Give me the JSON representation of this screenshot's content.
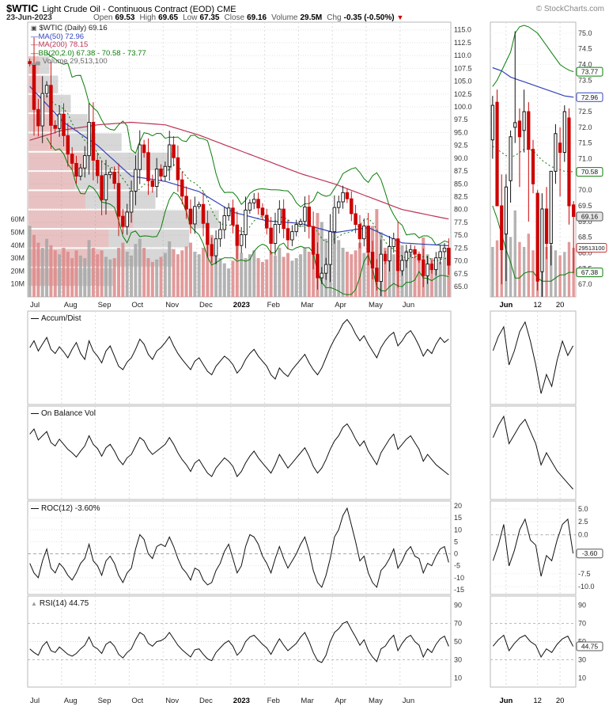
{
  "header": {
    "symbol": "$WTIC",
    "description": "Light Crude Oil - Continuous Contract (EOD) CME",
    "copyright": "© StockCharts.com",
    "date": "23-Jun-2023",
    "open_label": "Open",
    "open": "69.53",
    "high_label": "High",
    "high": "69.65",
    "low_label": "Low",
    "low": "67.35",
    "close_label": "Close",
    "close": "69.16",
    "volume_label": "Volume",
    "volume": "29.5M",
    "chg_label": "Chg",
    "chg": "-0.35 (-0.50%)",
    "chg_arrow": "▼"
  },
  "legend": {
    "symbol_line": "$WTIC (Daily) 69.16",
    "ma50": "MA(50) 72.96",
    "ma200": "MA(200) 78.15",
    "bb": "BB(20,2.0) 67.38 - 70.58 - 73.77",
    "volume": "Volume 29,513,100"
  },
  "panels": {
    "accum_title": "Accum/Dist",
    "obv_title": "On Balance Vol",
    "roc_title": "ROC(12) -3.60%",
    "rsi_title": "RSI(14) 44.75"
  },
  "colors": {
    "up": "#111111",
    "down": "#cc0000",
    "ma50": "#3344bb",
    "ma200": "#bb3355",
    "bb": "#0a7d0a",
    "volume_up": "#a6a6a6",
    "volume_down": "#dd8888",
    "vbp_gray": "#9a9a9a",
    "vbp_red": "#cc7777",
    "badge_green": "#0a7d0a",
    "badge_blue": "#3344bb",
    "badge_red": "#cc3333",
    "badge_dark": "#555555",
    "chg_down": "#cc0000",
    "indicator": "#111111",
    "volume_legend": "#666666"
  },
  "chart_data": {
    "type": "candlestick",
    "title": "$WTIC Light Crude Oil - Continuous Contract (EOD) CME",
    "x_labels": [
      "Jul",
      "Aug",
      "Sep",
      "Oct",
      "Nov",
      "Dec",
      "2023",
      "Feb",
      "Mar",
      "Apr",
      "May",
      "Jun"
    ],
    "month_start_idx": [
      0,
      8,
      16,
      24,
      32,
      40,
      48,
      56,
      64,
      72,
      80,
      88
    ],
    "ylim": [
      63.0,
      116.5
    ],
    "price_ticks": {
      "min": 65,
      "max": 115,
      "step": 2.5
    },
    "volume_ticks": [
      10,
      20,
      30,
      40,
      50,
      60
    ],
    "closes": [
      108.4,
      99.5,
      96.3,
      102.6,
      104.2,
      96.4,
      95.8,
      98.6,
      94.4,
      90.8,
      89.0,
      86.5,
      88.1,
      90.5,
      97.0,
      89.6,
      86.6,
      81.9,
      86.8,
      87.3,
      85.1,
      78.7,
      76.7,
      79.5,
      83.6,
      87.8,
      92.6,
      91.1,
      85.6,
      84.5,
      87.9,
      86.5,
      88.4,
      92.6,
      90.1,
      85.8,
      82.6,
      80.1,
      77.2,
      80.6,
      81.0,
      77.3,
      73.2,
      71.0,
      74.3,
      76.1,
      78.8,
      80.3,
      77.0,
      73.0,
      75.1,
      79.9,
      81.3,
      82.0,
      80.3,
      78.9,
      76.4,
      73.4,
      77.1,
      80.1,
      76.3,
      74.1,
      75.7,
      77.1,
      77.7,
      80.5,
      76.7,
      71.3,
      66.7,
      67.6,
      69.3,
      75.7,
      80.4,
      81.5,
      83.3,
      82.1,
      79.2,
      77.1,
      74.3,
      76.8,
      71.7,
      68.6,
      66.0,
      71.3,
      70.0,
      72.8,
      74.3,
      68.1,
      70.1,
      71.7,
      72.2,
      71.3,
      70.2,
      67.1,
      69.4,
      68.3,
      70.6,
      71.8,
      72.5,
      69.16
    ],
    "volumes_m": [
      55,
      48,
      42,
      38,
      45,
      40,
      36,
      33,
      38,
      35,
      30,
      36,
      32,
      30,
      44,
      38,
      33,
      36,
      31,
      29,
      30,
      38,
      42,
      35,
      32,
      41,
      45,
      38,
      30,
      27,
      29,
      31,
      34,
      43,
      37,
      33,
      36,
      39,
      42,
      35,
      33,
      38,
      44,
      48,
      36,
      30,
      26,
      22,
      28,
      41,
      34,
      30,
      33,
      36,
      30,
      27,
      29,
      35,
      32,
      38,
      31,
      34,
      28,
      30,
      33,
      38,
      35,
      52,
      65,
      58,
      45,
      40,
      56,
      44,
      38,
      35,
      33,
      36,
      42,
      34,
      48,
      55,
      68,
      50,
      38,
      35,
      33,
      44,
      40,
      36,
      34,
      31,
      29,
      46,
      33,
      30,
      28,
      27,
      31,
      29.5
    ],
    "ma50": {
      "idx": [
        0,
        8,
        16,
        24,
        32,
        40,
        48,
        56,
        64,
        72,
        80,
        88,
        99
      ],
      "values": [
        104,
        97,
        92.5,
        86.5,
        85.5,
        83.5,
        79.5,
        77.8,
        77.3,
        75.5,
        76.5,
        73.5,
        72.96
      ]
    },
    "ma200": {
      "idx": [
        0,
        8,
        16,
        24,
        32,
        40,
        48,
        56,
        64,
        72,
        80,
        88,
        99
      ],
      "values": [
        93.5,
        95.5,
        96.5,
        97,
        96.5,
        94.5,
        92,
        89.5,
        87,
        85,
        82.5,
        80,
        78.15
      ]
    },
    "bb_window": 10,
    "bb_mult": 2,
    "volume_by_price": [
      {
        "lo": 65.0,
        "hi": 68.75,
        "total": 0.2,
        "down_frac": 0.55
      },
      {
        "lo": 68.75,
        "hi": 72.5,
        "total": 0.34,
        "down_frac": 0.5
      },
      {
        "lo": 72.5,
        "hi": 76.25,
        "total": 0.38,
        "down_frac": 0.5
      },
      {
        "lo": 76.25,
        "hi": 80.0,
        "total": 0.45,
        "down_frac": 0.55
      },
      {
        "lo": 80.0,
        "hi": 83.75,
        "total": 0.3,
        "down_frac": 0.45
      },
      {
        "lo": 83.75,
        "hi": 87.5,
        "total": 0.26,
        "down_frac": 0.42
      },
      {
        "lo": 87.5,
        "hi": 91.25,
        "total": 0.34,
        "down_frac": 0.38
      },
      {
        "lo": 91.25,
        "hi": 95.0,
        "total": 0.22,
        "down_frac": 0.42
      },
      {
        "lo": 95.0,
        "hi": 98.75,
        "total": 0.14,
        "down_frac": 0.45
      },
      {
        "lo": 98.75,
        "hi": 102.5,
        "total": 0.1,
        "down_frac": 0.5
      },
      {
        "lo": 102.5,
        "hi": 106.25,
        "total": 0.07,
        "down_frac": 0.5
      },
      {
        "lo": 106.25,
        "hi": 110.0,
        "total": 0.05,
        "down_frac": 0.5
      }
    ],
    "indicators": {
      "accum_dist": {
        "ylim": [
          -5,
          105
        ],
        "values": [
          62,
          70,
          58,
          66,
          74,
          60,
          55,
          63,
          57,
          50,
          60,
          68,
          55,
          48,
          70,
          58,
          52,
          44,
          58,
          64,
          52,
          40,
          36,
          45,
          50,
          60,
          72,
          66,
          54,
          48,
          58,
          62,
          68,
          75,
          64,
          55,
          48,
          42,
          36,
          46,
          50,
          42,
          34,
          30,
          40,
          46,
          52,
          48,
          42,
          32,
          38,
          48,
          55,
          60,
          52,
          46,
          40,
          30,
          25,
          38,
          32,
          28,
          36,
          42,
          48,
          54,
          44,
          36,
          30,
          38,
          50,
          62,
          72,
          80,
          90,
          95,
          88,
          78,
          70,
          76,
          66,
          58,
          50,
          62,
          70,
          76,
          80,
          64,
          70,
          78,
          82,
          74,
          64,
          52,
          60,
          55,
          66,
          74,
          68,
          72
        ]
      },
      "obv": {
        "ylim": [
          -5,
          105
        ],
        "values": [
          72,
          78,
          65,
          70,
          75,
          62,
          58,
          66,
          60,
          54,
          50,
          45,
          52,
          58,
          70,
          60,
          55,
          46,
          56,
          60,
          52,
          42,
          36,
          44,
          48,
          58,
          68,
          64,
          54,
          48,
          52,
          56,
          60,
          68,
          60,
          50,
          42,
          36,
          28,
          38,
          42,
          34,
          26,
          22,
          32,
          38,
          44,
          40,
          34,
          22,
          28,
          38,
          46,
          52,
          44,
          38,
          32,
          26,
          36,
          48,
          40,
          32,
          38,
          44,
          50,
          56,
          46,
          34,
          26,
          32,
          42,
          54,
          64,
          70,
          80,
          84,
          76,
          66,
          58,
          64,
          52,
          44,
          36,
          50,
          58,
          66,
          72,
          54,
          60,
          66,
          70,
          62,
          54,
          40,
          48,
          42,
          36,
          32,
          28,
          24
        ]
      },
      "roc12": {
        "ylim": [
          -17,
          22
        ],
        "ticks": [
          20,
          15,
          10,
          5,
          0,
          -5,
          -10,
          -15
        ],
        "last": "-3.60",
        "values": [
          -4,
          -8,
          -10,
          -3,
          2,
          -6,
          -8,
          -4,
          -6,
          -9,
          -11,
          -8,
          -4,
          -2,
          4,
          -3,
          -5,
          -9,
          -3,
          -1,
          -4,
          -9,
          -12,
          -8,
          -6,
          2,
          8,
          6,
          0,
          -2,
          3,
          4,
          3,
          7,
          3,
          -2,
          -6,
          -8,
          -11,
          -6,
          -7,
          -11,
          -13,
          -12,
          -7,
          -4,
          1,
          4,
          -2,
          -8,
          -5,
          3,
          8,
          7,
          4,
          -1,
          -4,
          -8,
          -2,
          3,
          -2,
          -6,
          -3,
          0,
          4,
          7,
          1,
          -7,
          -12,
          -14,
          -9,
          -2,
          7,
          10,
          16,
          19,
          12,
          5,
          -3,
          -1,
          -8,
          -12,
          -14,
          -7,
          -5,
          -2,
          2,
          -6,
          -3,
          1,
          3,
          -1,
          -2,
          -8,
          -4,
          -5,
          -1,
          2,
          3,
          -3.6
        ]
      },
      "rsi14": {
        "ylim": [
          0,
          100
        ],
        "ticks": [
          90,
          70,
          50,
          30,
          10
        ],
        "last": "44.75",
        "values": [
          42,
          38,
          35,
          45,
          50,
          40,
          38,
          44,
          40,
          36,
          34,
          37,
          42,
          46,
          55,
          45,
          42,
          37,
          47,
          50,
          45,
          36,
          32,
          38,
          42,
          52,
          60,
          57,
          48,
          45,
          50,
          51,
          54,
          60,
          53,
          46,
          41,
          37,
          33,
          41,
          42,
          36,
          31,
          29,
          38,
          43,
          48,
          51,
          45,
          35,
          40,
          50,
          55,
          57,
          52,
          47,
          43,
          36,
          45,
          53,
          46,
          40,
          44,
          48,
          55,
          60,
          50,
          38,
          29,
          27,
          35,
          50,
          60,
          64,
          70,
          72,
          63,
          55,
          46,
          52,
          40,
          33,
          28,
          42,
          45,
          52,
          57,
          40,
          48,
          54,
          57,
          50,
          46,
          33,
          42,
          38,
          47,
          53,
          56,
          44.75
        ]
      }
    },
    "zoom": {
      "x_labels": [
        "Jun",
        "12",
        "20"
      ],
      "grid_idx": [
        3,
        10,
        15
      ],
      "ylim": [
        66.6,
        75.35
      ],
      "price_ticks": {
        "min": 67.0,
        "max": 75.0,
        "step": 0.5
      },
      "candles": [
        [
          71.6,
          73.0,
          71.0,
          72.7
        ],
        [
          72.8,
          73.2,
          69.5,
          69.5
        ],
        [
          69.5,
          70.5,
          67.0,
          68.1
        ],
        [
          68.6,
          70.5,
          67.1,
          70.1
        ],
        [
          70.3,
          71.9,
          69.6,
          71.7
        ],
        [
          72.0,
          75.06,
          71.5,
          72.15
        ],
        [
          72.2,
          72.6,
          70.1,
          71.7
        ],
        [
          71.9,
          73.2,
          71.2,
          72.5
        ],
        [
          72.5,
          72.8,
          69.0,
          71.3
        ],
        [
          71.3,
          71.6,
          69.9,
          70.2
        ],
        [
          69.9,
          70.0,
          66.8,
          67.1
        ],
        [
          67.4,
          69.9,
          66.6,
          69.4
        ],
        [
          69.4,
          70.1,
          67.8,
          68.3
        ],
        [
          68.3,
          70.6,
          67.6,
          70.6
        ],
        [
          70.6,
          72.1,
          70.2,
          71.8
        ],
        [
          71.5,
          72.0,
          69.8,
          71.2
        ],
        [
          71.2,
          72.7,
          70.9,
          72.5
        ],
        [
          72.3,
          72.6,
          68.9,
          69.5
        ],
        [
          69.53,
          69.65,
          67.35,
          69.16
        ]
      ],
      "volumes_m": [
        30,
        34,
        38,
        40,
        36,
        52,
        33,
        30,
        38,
        28,
        46,
        35,
        30,
        31,
        28,
        25,
        27,
        33,
        29.5
      ],
      "ma50": [
        73.9,
        73.85,
        73.8,
        73.7,
        73.6,
        73.55,
        73.5,
        73.45,
        73.4,
        73.35,
        73.3,
        73.25,
        73.2,
        73.15,
        73.1,
        73.05,
        73.0,
        72.98,
        72.96
      ],
      "bb_upper": [
        73.3,
        73.5,
        73.8,
        74.1,
        74.4,
        75.0,
        75.2,
        75.25,
        75.2,
        75.1,
        75.0,
        74.8,
        74.6,
        74.4,
        74.2,
        74.0,
        73.9,
        73.82,
        73.77
      ],
      "bb_mid": [
        71.4,
        71.3,
        71.2,
        71.1,
        71.05,
        71.1,
        71.2,
        71.3,
        71.3,
        71.25,
        71.1,
        70.95,
        70.85,
        70.75,
        70.7,
        70.65,
        70.6,
        70.6,
        70.58
      ],
      "bb_lower": [
        69.5,
        69.1,
        68.6,
        68.1,
        67.7,
        67.2,
        67.2,
        67.35,
        67.4,
        67.4,
        67.2,
        67.1,
        67.1,
        67.1,
        67.2,
        67.3,
        67.3,
        67.38,
        67.38
      ],
      "badges": [
        {
          "text": "73.77",
          "price": 73.77,
          "color": "green"
        },
        {
          "text": "72.96",
          "price": 72.96,
          "color": "blue"
        },
        {
          "text": "70.58",
          "price": 70.58,
          "color": "green"
        },
        {
          "text": "69.16",
          "price": 69.16,
          "color": "close"
        },
        {
          "text": "29513100",
          "vol": 29.5,
          "color": "red"
        },
        {
          "text": "67.38",
          "price": 67.38,
          "color": "green"
        }
      ],
      "roc_ylim": [
        -11.5,
        6.5
      ],
      "roc_ticks": [
        5.0,
        2.5,
        0.0,
        -2.5,
        -5.0,
        -7.5,
        -10.0
      ],
      "rsi_ticks": [
        90,
        70,
        50,
        30,
        10
      ],
      "tail": 16
    }
  }
}
